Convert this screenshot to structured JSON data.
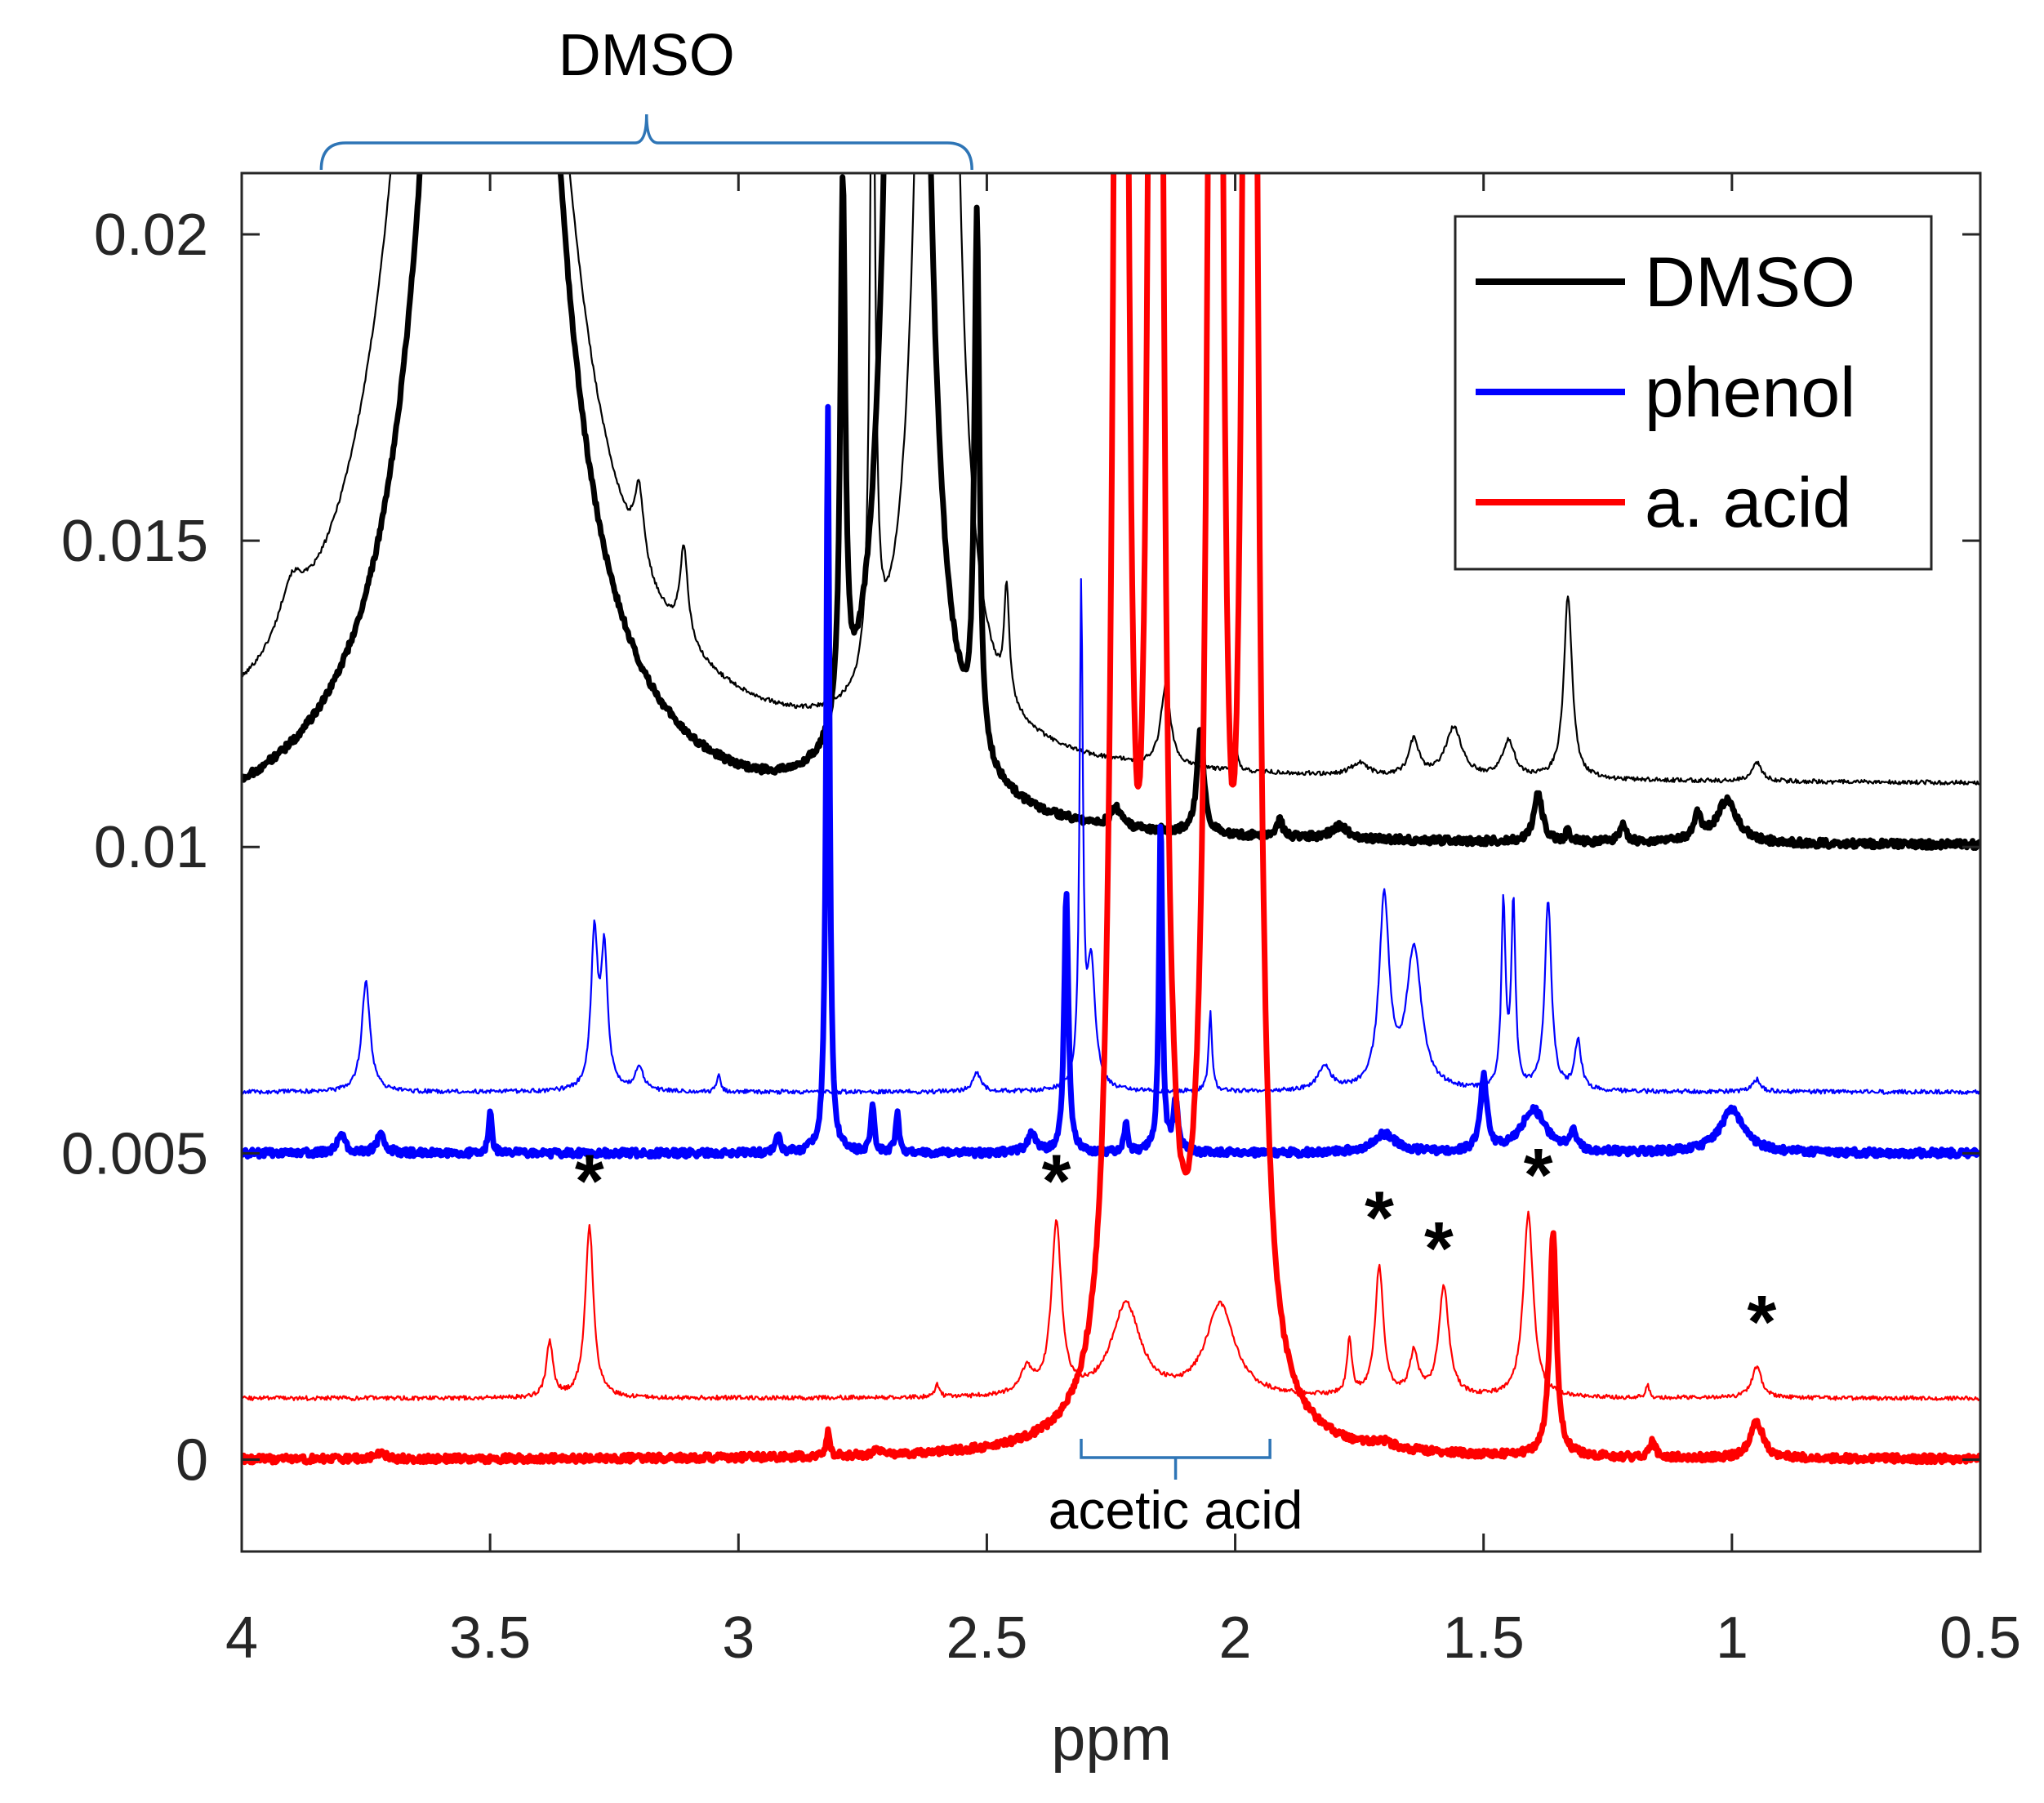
{
  "chart_data": {
    "type": "line",
    "title": "",
    "xlabel": "ppm",
    "ylabel": "",
    "xlim": [
      4,
      0.5
    ],
    "x_reversed": true,
    "ylim": [
      -0.0015,
      0.021
    ],
    "xticks": [
      4,
      3.5,
      3,
      2.5,
      2,
      1.5,
      1,
      0.5
    ],
    "xtick_labels": [
      "4",
      "3.5",
      "3",
      "2.5",
      "2",
      "1.5",
      "1",
      "0.5"
    ],
    "yticks": [
      0,
      0.005,
      0.01,
      0.015,
      0.02
    ],
    "ytick_labels": [
      "0",
      "0.005",
      "0.01",
      "0.015",
      "0.02"
    ],
    "legend": {
      "position": "top-right",
      "entries": [
        {
          "label": "DMSO",
          "color": "#000000"
        },
        {
          "label": "phenol",
          "color": "#0000ff"
        },
        {
          "label": "a. acid",
          "color": "#ff0000"
        }
      ]
    },
    "series": [
      {
        "name": "DMSO (thin)",
        "color": "#000000",
        "weight": "thin",
        "baseline": 0.011,
        "peaks": [
          {
            "x": 3.52,
            "h": 0.05,
            "w": 0.09
          },
          {
            "x": 3.9,
            "h": 0.0008,
            "w": 0.03
          },
          {
            "x": 3.2,
            "h": 0.0012,
            "w": 0.012
          },
          {
            "x": 3.11,
            "h": 0.0015,
            "w": 0.01
          },
          {
            "x": 2.73,
            "h": 0.012,
            "w": 0.006
          },
          {
            "x": 2.6,
            "h": 0.06,
            "w": 0.02
          },
          {
            "x": 2.46,
            "h": 0.0018,
            "w": 0.006
          },
          {
            "x": 2.14,
            "h": 0.0013,
            "w": 0.012
          },
          {
            "x": 2.0,
            "h": 0.0006,
            "w": 0.004
          },
          {
            "x": 1.75,
            "h": 0.0002,
            "w": 0.02
          },
          {
            "x": 1.64,
            "h": 0.0006,
            "w": 0.012
          },
          {
            "x": 1.56,
            "h": 0.0008,
            "w": 0.02
          },
          {
            "x": 1.45,
            "h": 0.0006,
            "w": 0.015
          },
          {
            "x": 1.33,
            "h": 0.003,
            "w": 0.01
          },
          {
            "x": 0.95,
            "h": 0.0003,
            "w": 0.012
          }
        ]
      },
      {
        "name": "DMSO (thick)",
        "color": "#000000",
        "weight": "thick",
        "baseline": 0.01,
        "peaks": [
          {
            "x": 3.5,
            "h": 0.05,
            "w": 0.075
          },
          {
            "x": 2.79,
            "h": 0.0088,
            "w": 0.006
          },
          {
            "x": 2.66,
            "h": 0.06,
            "w": 0.022
          },
          {
            "x": 2.52,
            "h": 0.0087,
            "w": 0.006
          },
          {
            "x": 2.24,
            "h": 0.0003,
            "w": 0.012
          },
          {
            "x": 2.07,
            "h": 0.0017,
            "w": 0.008
          },
          {
            "x": 1.91,
            "h": 0.0003,
            "w": 0.006
          },
          {
            "x": 1.79,
            "h": 0.0002,
            "w": 0.02
          },
          {
            "x": 1.39,
            "h": 0.0008,
            "w": 0.01
          },
          {
            "x": 1.33,
            "h": 0.0002,
            "w": 0.005
          },
          {
            "x": 1.22,
            "h": 0.0003,
            "w": 0.008
          },
          {
            "x": 1.07,
            "h": 0.0004,
            "w": 0.01
          },
          {
            "x": 1.01,
            "h": 0.0007,
            "w": 0.025
          }
        ]
      },
      {
        "name": "phenol (thin)",
        "color": "#0000ff",
        "weight": "thin",
        "baseline": 0.006,
        "peaks": [
          {
            "x": 3.75,
            "h": 0.0018,
            "w": 0.01
          },
          {
            "x": 3.29,
            "h": 0.0025,
            "w": 0.008
          },
          {
            "x": 3.27,
            "h": 0.0022,
            "w": 0.008
          },
          {
            "x": 3.2,
            "h": 0.0004,
            "w": 0.01
          },
          {
            "x": 3.04,
            "h": 0.0003,
            "w": 0.004
          },
          {
            "x": 2.52,
            "h": 0.0003,
            "w": 0.01
          },
          {
            "x": 2.31,
            "h": 0.008,
            "w": 0.004
          },
          {
            "x": 2.29,
            "h": 0.002,
            "w": 0.01
          },
          {
            "x": 2.05,
            "h": 0.0013,
            "w": 0.004
          },
          {
            "x": 1.82,
            "h": 0.0004,
            "w": 0.015
          },
          {
            "x": 1.7,
            "h": 0.0031,
            "w": 0.012
          },
          {
            "x": 1.64,
            "h": 0.0023,
            "w": 0.018
          },
          {
            "x": 1.46,
            "h": 0.003,
            "w": 0.005
          },
          {
            "x": 1.44,
            "h": 0.003,
            "w": 0.005
          },
          {
            "x": 1.37,
            "h": 0.0031,
            "w": 0.008
          },
          {
            "x": 1.31,
            "h": 0.0008,
            "w": 0.008
          },
          {
            "x": 0.95,
            "h": 0.0002,
            "w": 0.01
          }
        ]
      },
      {
        "name": "phenol (thick)",
        "color": "#0000ff",
        "weight": "thick",
        "baseline": 0.005,
        "peaks": [
          {
            "x": 3.8,
            "h": 0.0003,
            "w": 0.01
          },
          {
            "x": 3.72,
            "h": 0.0003,
            "w": 0.01
          },
          {
            "x": 3.5,
            "h": 0.0007,
            "w": 0.004
          },
          {
            "x": 2.92,
            "h": 0.0003,
            "w": 0.005
          },
          {
            "x": 2.82,
            "h": 0.0122,
            "w": 0.004
          },
          {
            "x": 2.73,
            "h": 0.0008,
            "w": 0.004
          },
          {
            "x": 2.68,
            "h": 0.0007,
            "w": 0.004
          },
          {
            "x": 2.41,
            "h": 0.0003,
            "w": 0.01
          },
          {
            "x": 2.34,
            "h": 0.0043,
            "w": 0.005
          },
          {
            "x": 2.22,
            "h": 0.0005,
            "w": 0.004
          },
          {
            "x": 2.15,
            "h": 0.0055,
            "w": 0.004
          },
          {
            "x": 2.12,
            "h": 0.0008,
            "w": 0.006
          },
          {
            "x": 1.7,
            "h": 0.0003,
            "w": 0.03
          },
          {
            "x": 1.5,
            "h": 0.0012,
            "w": 0.008
          },
          {
            "x": 1.4,
            "h": 0.0007,
            "w": 0.03
          },
          {
            "x": 1.32,
            "h": 0.0003,
            "w": 0.008
          },
          {
            "x": 1.0,
            "h": 0.0007,
            "w": 0.03
          }
        ]
      },
      {
        "name": "a. acid (thin)",
        "color": "#ff0000",
        "weight": "thin",
        "baseline": 0.001,
        "peaks": [
          {
            "x": 3.38,
            "h": 0.0009,
            "w": 0.008
          },
          {
            "x": 3.3,
            "h": 0.0028,
            "w": 0.01
          },
          {
            "x": 2.6,
            "h": 0.0002,
            "w": 0.005
          },
          {
            "x": 2.42,
            "h": 0.0004,
            "w": 0.015
          },
          {
            "x": 2.36,
            "h": 0.0028,
            "w": 0.012
          },
          {
            "x": 2.22,
            "h": 0.0015,
            "w": 0.035
          },
          {
            "x": 2.03,
            "h": 0.0015,
            "w": 0.035
          },
          {
            "x": 1.77,
            "h": 0.0009,
            "w": 0.006
          },
          {
            "x": 1.71,
            "h": 0.0021,
            "w": 0.01
          },
          {
            "x": 1.64,
            "h": 0.0007,
            "w": 0.01
          },
          {
            "x": 1.58,
            "h": 0.0018,
            "w": 0.012
          },
          {
            "x": 1.41,
            "h": 0.003,
            "w": 0.012
          },
          {
            "x": 1.17,
            "h": 0.0002,
            "w": 0.004
          },
          {
            "x": 0.95,
            "h": 0.0005,
            "w": 0.012
          }
        ]
      },
      {
        "name": "a. acid (thick)",
        "color": "#ff0000",
        "weight": "thick",
        "baseline": 0.0,
        "peaks": [
          {
            "x": 3.72,
            "h": 0.0001,
            "w": 0.01
          },
          {
            "x": 2.82,
            "h": 0.0004,
            "w": 0.004
          },
          {
            "x": 2.72,
            "h": 0.0001,
            "w": 0.008
          },
          {
            "x": 2.23,
            "h": 0.05,
            "w": 0.012
          },
          {
            "x": 2.16,
            "h": 0.05,
            "w": 0.012
          },
          {
            "x": 2.04,
            "h": 0.05,
            "w": 0.012
          },
          {
            "x": 1.97,
            "h": 0.05,
            "w": 0.012
          },
          {
            "x": 1.7,
            "h": 0.0001,
            "w": 0.02
          },
          {
            "x": 1.36,
            "h": 0.0037,
            "w": 0.008
          },
          {
            "x": 1.16,
            "h": 0.0003,
            "w": 0.006
          },
          {
            "x": 0.95,
            "h": 0.0006,
            "w": 0.015
          }
        ]
      }
    ],
    "annotations": [
      {
        "type": "brace",
        "label": "DMSO",
        "x_range": [
          3.84,
          2.53
        ],
        "side": "above-axes"
      },
      {
        "type": "brace",
        "label": "acetic acid",
        "x_range": [
          2.31,
          1.93
        ],
        "side": "below"
      },
      {
        "type": "marker",
        "label": "*",
        "x": 3.3,
        "y": 0.0045
      },
      {
        "type": "marker",
        "label": "*",
        "x": 2.36,
        "y": 0.0045
      },
      {
        "type": "marker",
        "label": "*",
        "x": 1.71,
        "y": 0.0039
      },
      {
        "type": "marker",
        "label": "*",
        "x": 1.59,
        "y": 0.0034
      },
      {
        "type": "marker",
        "label": "*",
        "x": 1.39,
        "y": 0.0046
      },
      {
        "type": "marker",
        "label": "*",
        "x": 0.94,
        "y": 0.0022
      }
    ]
  }
}
